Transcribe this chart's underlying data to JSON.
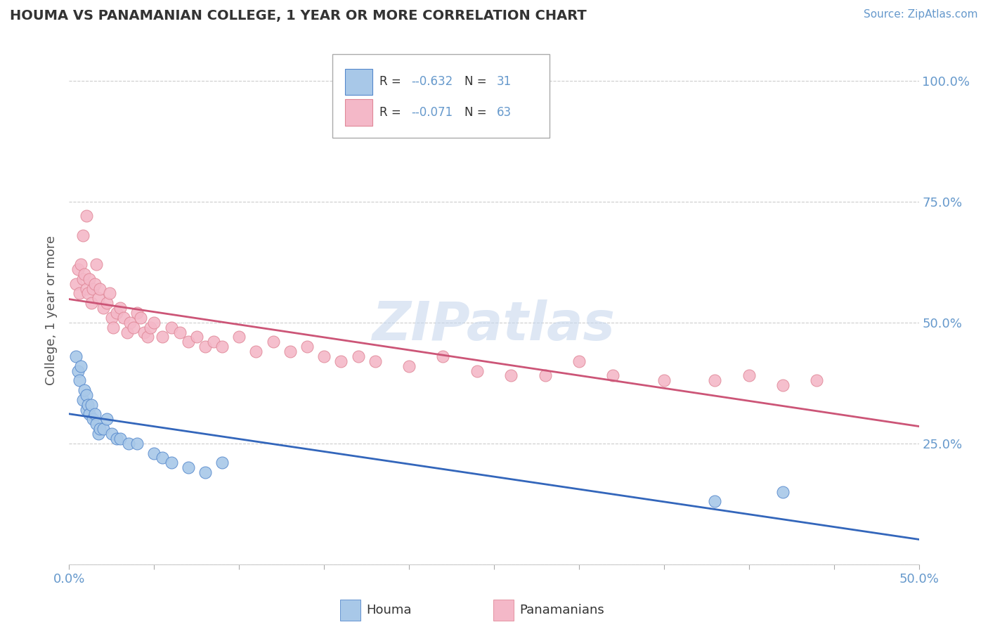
{
  "title": "HOUMA VS PANAMANIAN COLLEGE, 1 YEAR OR MORE CORRELATION CHART",
  "source_text": "Source: ZipAtlas.com",
  "ylabel": "College, 1 year or more",
  "watermark": "ZIPatlas",
  "xlim": [
    0.0,
    0.5
  ],
  "ylim": [
    0.0,
    1.05
  ],
  "xtick_vals": [
    0.0,
    0.05,
    0.1,
    0.15,
    0.2,
    0.25,
    0.3,
    0.35,
    0.4,
    0.45,
    0.5
  ],
  "ytick_vals": [
    0.0,
    0.25,
    0.5,
    0.75,
    1.0
  ],
  "ytick_labels_right": [
    "",
    "25.0%",
    "50.0%",
    "75.0%",
    "100.0%"
  ],
  "houma_color": "#a8c8e8",
  "panamanian_color": "#f4b8c8",
  "houma_edge_color": "#5588cc",
  "panamanian_edge_color": "#e08898",
  "houma_line_color": "#3366bb",
  "panamanian_line_color": "#cc5577",
  "legend_R_houma": "-0.632",
  "legend_N_houma": "31",
  "legend_R_panamanian": "-0.071",
  "legend_N_panamanian": "63",
  "bg_color": "#ffffff",
  "grid_color": "#cccccc",
  "title_color": "#333333",
  "axis_label_color": "#555555",
  "right_tick_color": "#6699cc",
  "watermark_color": "#c8d8ee",
  "houma_x": [
    0.004,
    0.005,
    0.006,
    0.007,
    0.008,
    0.009,
    0.01,
    0.01,
    0.011,
    0.012,
    0.013,
    0.014,
    0.015,
    0.016,
    0.017,
    0.018,
    0.02,
    0.022,
    0.025,
    0.028,
    0.03,
    0.035,
    0.04,
    0.05,
    0.055,
    0.06,
    0.07,
    0.08,
    0.09,
    0.38,
    0.42
  ],
  "houma_y": [
    0.43,
    0.4,
    0.38,
    0.41,
    0.34,
    0.36,
    0.35,
    0.32,
    0.33,
    0.31,
    0.33,
    0.3,
    0.31,
    0.29,
    0.27,
    0.28,
    0.28,
    0.3,
    0.27,
    0.26,
    0.26,
    0.25,
    0.25,
    0.23,
    0.22,
    0.21,
    0.2,
    0.19,
    0.21,
    0.13,
    0.15
  ],
  "panamanian_x": [
    0.004,
    0.005,
    0.006,
    0.007,
    0.008,
    0.008,
    0.009,
    0.01,
    0.01,
    0.011,
    0.012,
    0.013,
    0.014,
    0.015,
    0.016,
    0.017,
    0.018,
    0.02,
    0.022,
    0.024,
    0.025,
    0.026,
    0.028,
    0.03,
    0.032,
    0.034,
    0.036,
    0.038,
    0.04,
    0.042,
    0.044,
    0.046,
    0.048,
    0.05,
    0.055,
    0.06,
    0.065,
    0.07,
    0.075,
    0.08,
    0.085,
    0.09,
    0.1,
    0.11,
    0.12,
    0.13,
    0.14,
    0.15,
    0.16,
    0.17,
    0.18,
    0.2,
    0.22,
    0.24,
    0.26,
    0.28,
    0.3,
    0.32,
    0.35,
    0.38,
    0.4,
    0.42,
    0.44
  ],
  "panamanian_y": [
    0.58,
    0.61,
    0.56,
    0.62,
    0.59,
    0.68,
    0.6,
    0.57,
    0.72,
    0.56,
    0.59,
    0.54,
    0.57,
    0.58,
    0.62,
    0.55,
    0.57,
    0.53,
    0.54,
    0.56,
    0.51,
    0.49,
    0.52,
    0.53,
    0.51,
    0.48,
    0.5,
    0.49,
    0.52,
    0.51,
    0.48,
    0.47,
    0.49,
    0.5,
    0.47,
    0.49,
    0.48,
    0.46,
    0.47,
    0.45,
    0.46,
    0.45,
    0.47,
    0.44,
    0.46,
    0.44,
    0.45,
    0.43,
    0.42,
    0.43,
    0.42,
    0.41,
    0.43,
    0.4,
    0.39,
    0.39,
    0.42,
    0.39,
    0.38,
    0.38,
    0.39,
    0.37,
    0.38
  ]
}
